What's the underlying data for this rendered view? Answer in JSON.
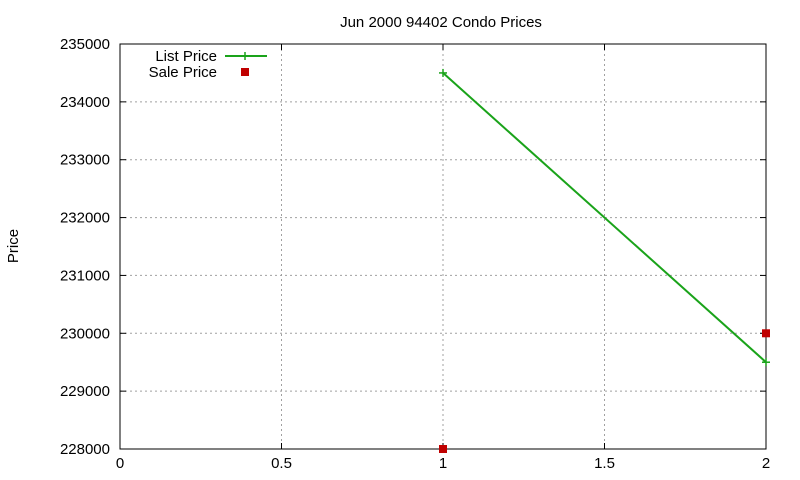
{
  "chart_data": {
    "type": "line",
    "title": "Jun 2000 94402 Condo Prices",
    "xlabel": "",
    "ylabel": "Price",
    "xlim": [
      0,
      2
    ],
    "ylim": [
      228000,
      235000
    ],
    "x_ticks": [
      "0",
      "0.5",
      "1",
      "1.5",
      "2"
    ],
    "y_ticks": [
      "228000",
      "229000",
      "230000",
      "231000",
      "232000",
      "233000",
      "234000",
      "235000"
    ],
    "grid": true,
    "legend_position": "top-left",
    "series": [
      {
        "name": "List Price",
        "style": "line-points",
        "marker": "plus",
        "color": "#1aa31a",
        "points": [
          {
            "x": 1,
            "y": 234500
          },
          {
            "x": 2,
            "y": 229500
          }
        ]
      },
      {
        "name": "Sale Price",
        "style": "points",
        "marker": "square",
        "color": "#c00000",
        "points": [
          {
            "x": 1,
            "y": 228000
          },
          {
            "x": 2,
            "y": 230000
          }
        ]
      }
    ]
  }
}
